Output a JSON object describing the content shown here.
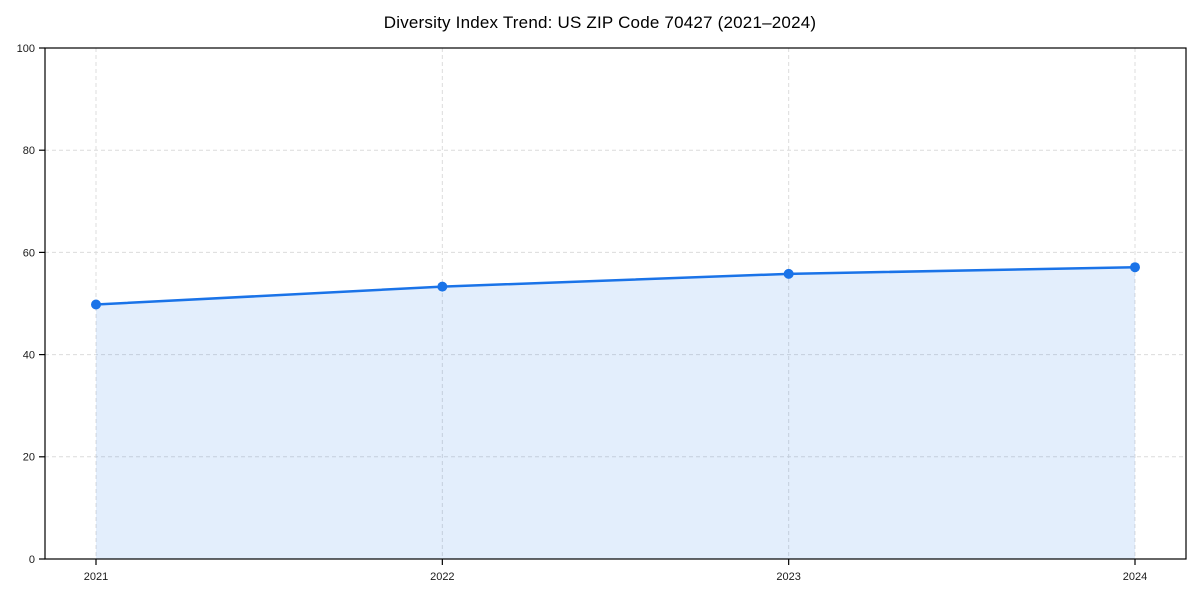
{
  "chart_data": {
    "type": "area",
    "title": "Diversity Index Trend: US ZIP Code 70427 (2021–2024)",
    "categories": [
      "2021",
      "2022",
      "2023",
      "2024"
    ],
    "series": [
      {
        "name": "Diversity Index",
        "values": [
          49.8,
          53.3,
          55.8,
          57.1
        ]
      }
    ],
    "xlabel": "",
    "ylabel": "",
    "ylim": [
      0,
      100
    ],
    "yticks": [
      0,
      20,
      40,
      60,
      80,
      100
    ],
    "grid": true,
    "grid_style": "dashed",
    "legend": false,
    "colors": {
      "line": "#1a73e8",
      "marker": "#1a73e8",
      "fill": "rgba(26,115,232,0.12)",
      "grid": "#dcdcdc",
      "spine": "#000000",
      "tick_label": "#1a1a1a",
      "background": "#ffffff"
    }
  }
}
